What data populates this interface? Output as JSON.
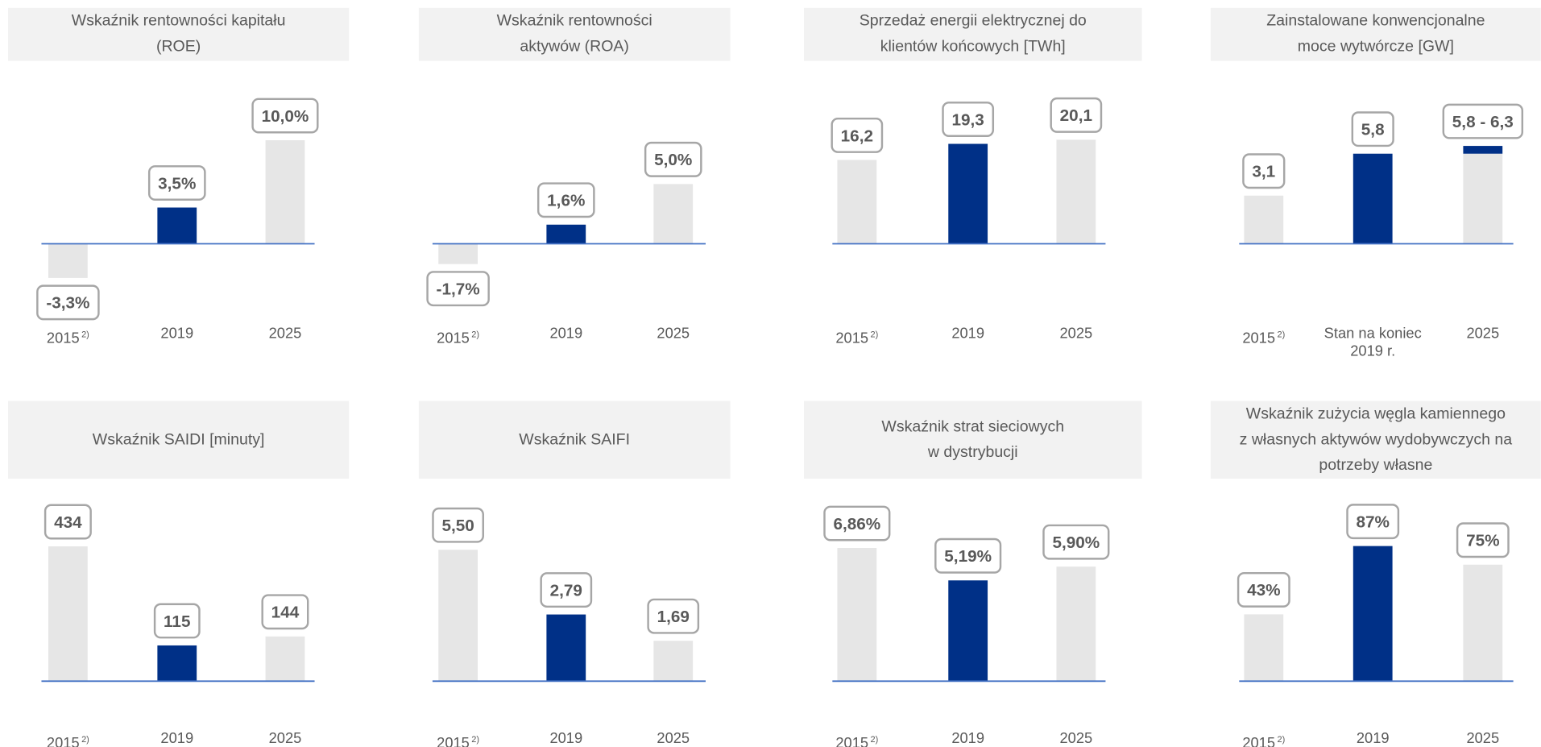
{
  "chart_data": [
    {
      "type": "bar",
      "title": "Wskaźnik rentowności kapitału\n(ROE)",
      "categories": [
        "2015",
        "2019",
        "2025"
      ],
      "category_footnotes": [
        "2)",
        null,
        null
      ],
      "values": [
        -3.3,
        3.5,
        10.0
      ],
      "value_labels": [
        "-3,3%",
        "3,5%",
        "10,0%"
      ],
      "colors": [
        "#e6e6e6",
        "#003087",
        "#e6e6e6"
      ],
      "ylim": [
        0,
        15
      ]
    },
    {
      "type": "bar",
      "title": "Wskaźnik rentowności\naktywów (ROA)",
      "categories": [
        "2015",
        "2019",
        "2025"
      ],
      "category_footnotes": [
        "2)",
        null,
        null
      ],
      "values": [
        -1.7,
        1.6,
        5.0
      ],
      "value_labels": [
        "-1,7%",
        "1,6%",
        "5,0%"
      ],
      "colors": [
        "#e6e6e6",
        "#003087",
        "#e6e6e6"
      ],
      "ylim": [
        0,
        13
      ]
    },
    {
      "type": "bar",
      "title": "Sprzedaż energii elektrycznej do\nklientów końcowych [TWh]",
      "categories": [
        "2015",
        "2019",
        "2025"
      ],
      "category_footnotes": [
        "2)",
        null,
        null
      ],
      "values": [
        16.2,
        19.3,
        20.1
      ],
      "value_labels": [
        "16,2",
        "19,3",
        "20,1"
      ],
      "colors": [
        "#e6e6e6",
        "#003087",
        "#e6e6e6"
      ],
      "ylim": [
        0,
        30
      ]
    },
    {
      "type": "bar",
      "title": "Zainstalowane konwencjonalne\nmoce wytwórcze [GW]",
      "categories": [
        "2015",
        "Stan na koniec\n2019 r.",
        "2025"
      ],
      "category_footnotes": [
        "2)",
        null,
        null
      ],
      "values": [
        3.1,
        5.8,
        5.8
      ],
      "range_top": [
        null,
        null,
        6.3
      ],
      "range_color": "#003087",
      "value_labels": [
        "3,1",
        "5,8",
        "5,8 - 6,3"
      ],
      "colors": [
        "#e6e6e6",
        "#003087",
        "#e6e6e6"
      ],
      "ylim": [
        0,
        10
      ]
    },
    {
      "type": "bar",
      "title": "Wskaźnik SAIDI [minuty]",
      "categories": [
        "2015",
        "2019",
        "2025"
      ],
      "category_footnotes": [
        "2)",
        null,
        null
      ],
      "values": [
        434,
        115,
        144
      ],
      "colors": [
        "#e6e6e6",
        "#003087",
        "#e6e6e6"
      ],
      "ylim": [
        0,
        500
      ]
    },
    {
      "type": "bar",
      "title": "Wskaźnik SAIFI",
      "categories": [
        "2015",
        "2019",
        "2025"
      ],
      "category_footnotes": [
        "2)",
        null,
        null
      ],
      "values": [
        5.5,
        2.79,
        1.69
      ],
      "value_labels": [
        "5,50",
        "2,79",
        "1,69"
      ],
      "colors": [
        "#e6e6e6",
        "#003087",
        "#e6e6e6"
      ],
      "ylim": [
        0,
        6.5
      ]
    },
    {
      "type": "bar",
      "title": "Wskaźnik strat sieciowych\nw dystrybucji",
      "categories": [
        "2015",
        "2019",
        "2025"
      ],
      "category_footnotes": [
        "2)",
        null,
        null
      ],
      "values": [
        6.86,
        5.19,
        5.9
      ],
      "value_labels": [
        "6,86%",
        "5,19%",
        "5,90%"
      ],
      "colors": [
        "#e6e6e6",
        "#003087",
        "#e6e6e6"
      ],
      "ylim": [
        0,
        8
      ]
    },
    {
      "type": "bar",
      "title": "Wskaźnik zużycia węgla kamiennego\nz własnych aktywów wydobywczych na\npotrzeby własne",
      "categories": [
        "2015",
        "2019",
        "2025"
      ],
      "category_footnotes": [
        "2)",
        null,
        null
      ],
      "values": [
        43,
        87,
        75
      ],
      "value_labels": [
        "43%",
        "87%",
        "75%"
      ],
      "colors": [
        "#e6e6e6",
        "#003087",
        "#e6e6e6"
      ],
      "ylim": [
        0,
        100
      ]
    }
  ]
}
